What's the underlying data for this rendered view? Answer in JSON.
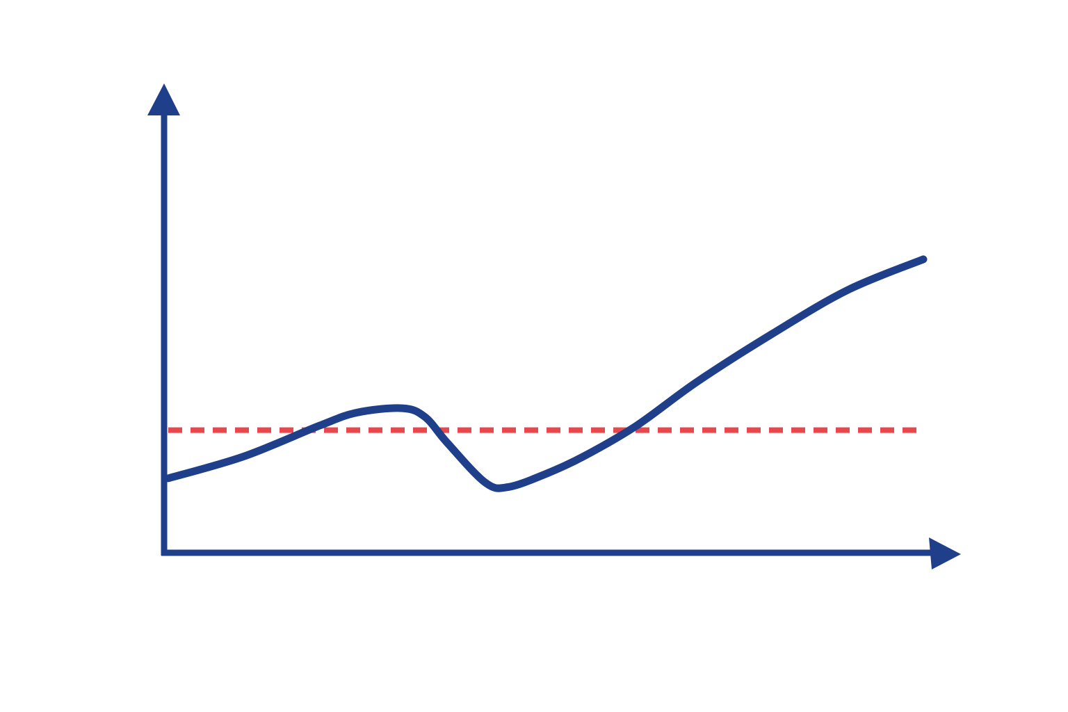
{
  "colors": {
    "axis": "#1f3f8a",
    "series": "#1f3f8a",
    "threshold": "#e8474d",
    "background": "#ffffff"
  },
  "chart_data": {
    "type": "line",
    "title": "",
    "xlabel": "",
    "ylabel": "",
    "xlim": [
      0,
      100
    ],
    "ylim": [
      0,
      100
    ],
    "grid": false,
    "legend": "none",
    "axis_style": "arrows",
    "series": [
      {
        "line_style": "solid",
        "x": [
          0,
          10,
          20,
          25,
          31,
          34,
          37,
          42,
          45,
          50,
          55,
          62,
          70,
          80,
          90,
          100
        ],
        "y": [
          17,
          22,
          29,
          32,
          33,
          31,
          25,
          16,
          15,
          18,
          22,
          29,
          39,
          50,
          60,
          67
        ]
      }
    ],
    "reference_lines": [
      {
        "orientation": "horizontal",
        "y": 28,
        "line_style": "dashed"
      }
    ]
  }
}
